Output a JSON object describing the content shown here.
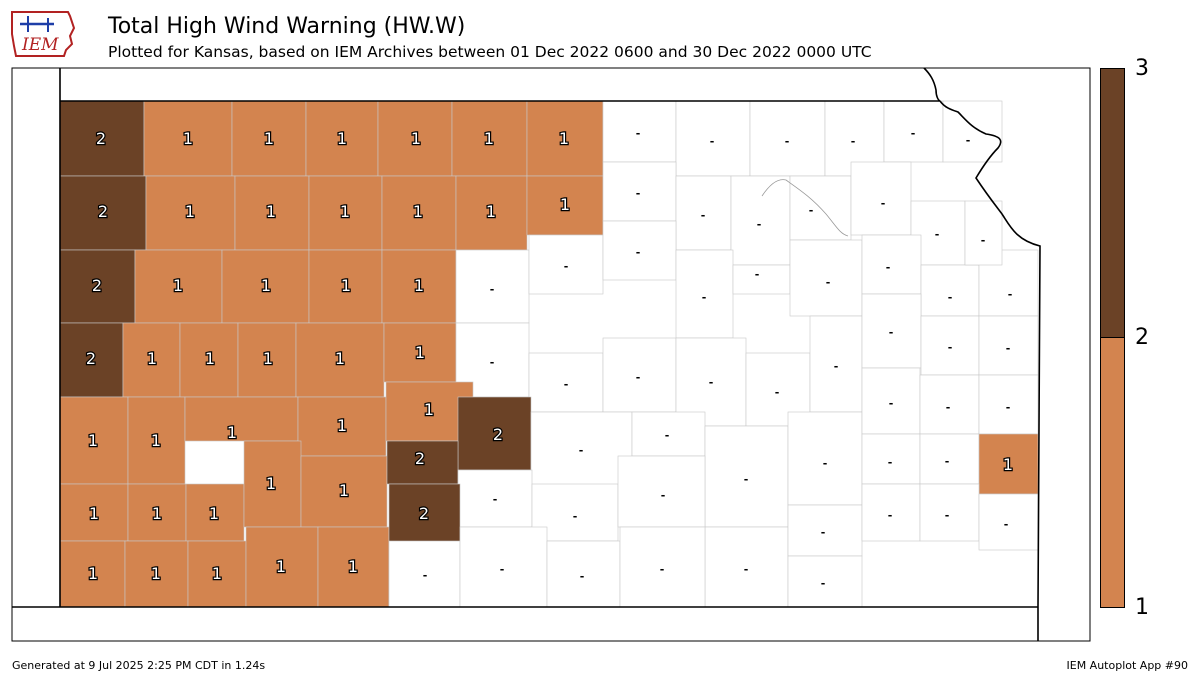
{
  "header": {
    "title": "Total High Wind Warning (HW.W)",
    "subtitle": "Plotted for Kansas, based on IEM Archives  between 01 Dec 2022 0600 and 30 Dec 2022 0000 UTC"
  },
  "logo": {
    "text": "IEM"
  },
  "footer": {
    "left": "Generated at 9 Jul 2025 2:25 PM CDT in 1.24s",
    "right": "IEM Autoplot App #90"
  },
  "colorbar": {
    "ticks": [
      "3",
      "2",
      "1"
    ],
    "bins": [
      {
        "range": "1-2",
        "color": "#d3844f"
      },
      {
        "range": "2-3",
        "color": "#6b4226"
      }
    ]
  },
  "colors": {
    "one": "#d3844f",
    "two": "#6b4226",
    "zero": "#ffffff"
  },
  "counties": [
    {
      "label": "2",
      "value": 2
    },
    {
      "label": "1",
      "value": 1
    },
    {
      "label": "1",
      "value": 1
    },
    {
      "label": "1",
      "value": 1
    },
    {
      "label": "1",
      "value": 1
    },
    {
      "label": "1",
      "value": 1
    },
    {
      "label": "1",
      "value": 1
    },
    {
      "label": "-",
      "value": 0
    },
    {
      "label": "-",
      "value": 0
    },
    {
      "label": "-",
      "value": 0
    },
    {
      "label": "-",
      "value": 0
    },
    {
      "label": "-",
      "value": 0
    },
    {
      "label": "-",
      "value": 0
    },
    {
      "label": "2",
      "value": 2
    },
    {
      "label": "1",
      "value": 1
    },
    {
      "label": "1",
      "value": 1
    },
    {
      "label": "1",
      "value": 1
    },
    {
      "label": "1",
      "value": 1
    },
    {
      "label": "1",
      "value": 1
    },
    {
      "label": "1",
      "value": 1
    },
    {
      "label": "-",
      "value": 0
    },
    {
      "label": "-",
      "value": 0
    },
    {
      "label": "-",
      "value": 0
    },
    {
      "label": "-",
      "value": 0
    },
    {
      "label": "-",
      "value": 0
    },
    {
      "label": "-",
      "value": 0
    },
    {
      "label": "2",
      "value": 2
    },
    {
      "label": "1",
      "value": 1
    },
    {
      "label": "1",
      "value": 1
    },
    {
      "label": "1",
      "value": 1
    },
    {
      "label": "1",
      "value": 1
    },
    {
      "label": "-",
      "value": 0
    },
    {
      "label": "-",
      "value": 0
    },
    {
      "label": "-",
      "value": 0
    },
    {
      "label": "-",
      "value": 0
    },
    {
      "label": "-",
      "value": 0
    },
    {
      "label": "-",
      "value": 0
    },
    {
      "label": "-",
      "value": 0
    },
    {
      "label": "-",
      "value": 0
    },
    {
      "label": "-",
      "value": 0
    },
    {
      "label": "-",
      "value": 0
    },
    {
      "label": "2",
      "value": 2
    },
    {
      "label": "1",
      "value": 1
    },
    {
      "label": "1",
      "value": 1
    },
    {
      "label": "1",
      "value": 1
    },
    {
      "label": "1",
      "value": 1
    },
    {
      "label": "1",
      "value": 1
    },
    {
      "label": "-",
      "value": 0
    },
    {
      "label": "-",
      "value": 0
    },
    {
      "label": "-",
      "value": 0
    },
    {
      "label": "-",
      "value": 0
    },
    {
      "label": "-",
      "value": 0
    },
    {
      "label": "-",
      "value": 0
    },
    {
      "label": "-",
      "value": 0
    },
    {
      "label": "-",
      "value": 0
    },
    {
      "label": "-",
      "value": 0
    },
    {
      "label": "1",
      "value": 1
    },
    {
      "label": "1",
      "value": 1
    },
    {
      "label": "1",
      "value": 1
    },
    {
      "label": "1",
      "value": 1
    },
    {
      "label": "1",
      "value": 1
    },
    {
      "label": "2",
      "value": 2
    },
    {
      "label": "-",
      "value": 0
    },
    {
      "label": "-",
      "value": 0
    },
    {
      "label": "-",
      "value": 0
    },
    {
      "label": "-",
      "value": 0
    },
    {
      "label": "-",
      "value": 0
    },
    {
      "label": "-",
      "value": 0
    },
    {
      "label": "-",
      "value": 0
    },
    {
      "label": "1",
      "value": 1
    },
    {
      "label": "1",
      "value": 1
    },
    {
      "label": "1",
      "value": 1
    },
    {
      "label": "1",
      "value": 1
    },
    {
      "label": "1",
      "value": 1
    },
    {
      "label": "2",
      "value": 2
    },
    {
      "label": "-",
      "value": 0
    },
    {
      "label": "-",
      "value": 0
    },
    {
      "label": "-",
      "value": 0
    },
    {
      "label": "-",
      "value": 0
    },
    {
      "label": "-",
      "value": 0
    },
    {
      "label": "-",
      "value": 0
    },
    {
      "label": "-",
      "value": 0
    },
    {
      "label": "1",
      "value": 1
    },
    {
      "label": "1",
      "value": 1
    },
    {
      "label": "1",
      "value": 1
    },
    {
      "label": "1",
      "value": 1
    },
    {
      "label": "1",
      "value": 1
    },
    {
      "label": "1",
      "value": 1
    },
    {
      "label": "2",
      "value": 2
    },
    {
      "label": "-",
      "value": 0
    },
    {
      "label": "-",
      "value": 0
    },
    {
      "label": "-",
      "value": 0
    },
    {
      "label": "-",
      "value": 0
    },
    {
      "label": "-",
      "value": 0
    },
    {
      "label": "-",
      "value": 0
    },
    {
      "label": "-",
      "value": 0
    },
    {
      "label": "-",
      "value": 0
    }
  ]
}
